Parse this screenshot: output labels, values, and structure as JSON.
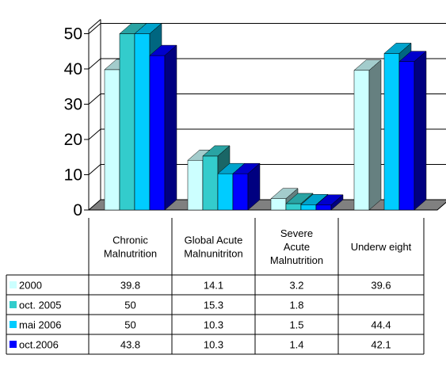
{
  "chart_data": {
    "type": "bar",
    "categories": [
      [
        "Chronic",
        "Malnutrition"
      ],
      [
        "Global Acute",
        "Malnunitriton"
      ],
      [
        "Severe",
        "Acute",
        "Malnutrition"
      ],
      [
        "Underw eight"
      ]
    ],
    "series": [
      {
        "name": "2000",
        "color": "#ccffff",
        "values": [
          39.8,
          14.1,
          3.2,
          39.6
        ],
        "labels": [
          "39.8",
          "14.1",
          "3.2",
          "39.6"
        ]
      },
      {
        "name": "oct. 2005",
        "color": "#33cccc",
        "values": [
          50,
          15.3,
          1.8,
          null
        ],
        "labels": [
          "50",
          "15.3",
          "1.8",
          ""
        ]
      },
      {
        "name": "mai 2006",
        "color": "#00ccff",
        "values": [
          50,
          10.3,
          1.5,
          44.4
        ],
        "labels": [
          "50",
          "10.3",
          "1.5",
          "44.4"
        ]
      },
      {
        "name": "oct.2006",
        "color": "#0000ff",
        "values": [
          43.8,
          10.3,
          1.4,
          42.1
        ],
        "labels": [
          "43.8",
          "10.3",
          "1.4",
          "42.1"
        ]
      }
    ],
    "ylim": [
      0,
      50
    ],
    "yticks": [
      "0",
      "10",
      "20",
      "30",
      "40",
      "50"
    ],
    "grid": true,
    "legend": "data-table-left",
    "style": "3d-clustered-column"
  }
}
